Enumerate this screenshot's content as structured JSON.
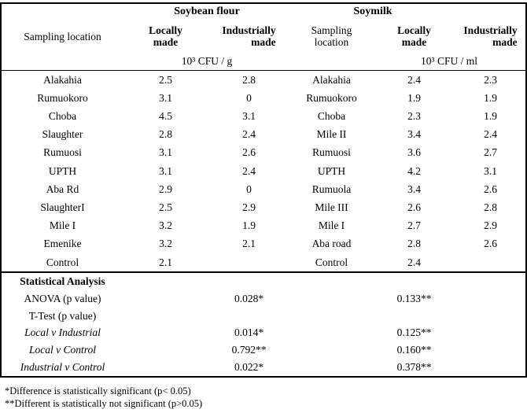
{
  "header": {
    "group_flour": "Soybean flour",
    "group_milk": "Soymilk",
    "sampling_location": "Sampling location",
    "locally_made": "Locally made",
    "industrially_made": "Industrially made",
    "unit_flour": "10³ CFU / g",
    "unit_milk": "10³ CFU / ml"
  },
  "rows": [
    {
      "location_flour": "Alakahia",
      "flour_local": "2.5",
      "flour_industrial": "2.8",
      "location_milk": "Alakahia",
      "milk_local": "2.4",
      "milk_industrial": "2.3"
    },
    {
      "location_flour": "Rumuokoro",
      "flour_local": "3.1",
      "flour_industrial": "0",
      "location_milk": "Rumuokoro",
      "milk_local": "1.9",
      "milk_industrial": "1.9"
    },
    {
      "location_flour": "Choba",
      "flour_local": "4.5",
      "flour_industrial": "3.1",
      "location_milk": "Choba",
      "milk_local": "2.3",
      "milk_industrial": "1.9"
    },
    {
      "location_flour": "Slaughter",
      "flour_local": "2.8",
      "flour_industrial": "2.4",
      "location_milk": "Mile II",
      "milk_local": "3.4",
      "milk_industrial": "2.4"
    },
    {
      "location_flour": "Rumuosi",
      "flour_local": "3.1",
      "flour_industrial": "2.6",
      "location_milk": "Rumuosi",
      "milk_local": "3.6",
      "milk_industrial": "2.7"
    },
    {
      "location_flour": "UPTH",
      "flour_local": "3.1",
      "flour_industrial": "2.4",
      "location_milk": "UPTH",
      "milk_local": "4.2",
      "milk_industrial": "3.1"
    },
    {
      "location_flour": "Aba Rd",
      "flour_local": "2.9",
      "flour_industrial": "0",
      "location_milk": "Rumuola",
      "milk_local": "3.4",
      "milk_industrial": "2.6"
    },
    {
      "location_flour": "SlaughterI",
      "flour_local": "2.5",
      "flour_industrial": "2.9",
      "location_milk": "Mile III",
      "milk_local": "2.6",
      "milk_industrial": "2.8"
    },
    {
      "location_flour": "Mile I",
      "flour_local": "3.2",
      "flour_industrial": "1.9",
      "location_milk": "Mile I",
      "milk_local": "2.7",
      "milk_industrial": "2.9"
    },
    {
      "location_flour": "Emenike",
      "flour_local": "3.2",
      "flour_industrial": "2.1",
      "location_milk": "Aba road",
      "milk_local": "2.8",
      "milk_industrial": "2.6"
    },
    {
      "location_flour": "Control",
      "flour_local": "2.1",
      "flour_industrial": "",
      "location_milk": "Control",
      "milk_local": "2.4",
      "milk_industrial": ""
    }
  ],
  "stats": {
    "section_title": "Statistical Analysis",
    "rows": [
      {
        "label": "ANOVA (p value)",
        "italic": false,
        "flour_value": "0.028*",
        "milk_value": "0.133**"
      },
      {
        "label": "T-Test (p value)",
        "italic": false,
        "flour_value": "",
        "milk_value": ""
      },
      {
        "label": "Local v Industrial",
        "italic": true,
        "flour_value": "0.014*",
        "milk_value": "0.125**"
      },
      {
        "label": "Local v Control",
        "italic": true,
        "flour_value": "0.792**",
        "milk_value": "0.160**"
      },
      {
        "label": "Industrial v Control",
        "italic": true,
        "flour_value": "0.022*",
        "milk_value": "0.378**"
      }
    ]
  },
  "footnotes": [
    "*Difference is statistically significant (p< 0.05)",
    "**Different is statistically not significant (p>0.05)"
  ]
}
